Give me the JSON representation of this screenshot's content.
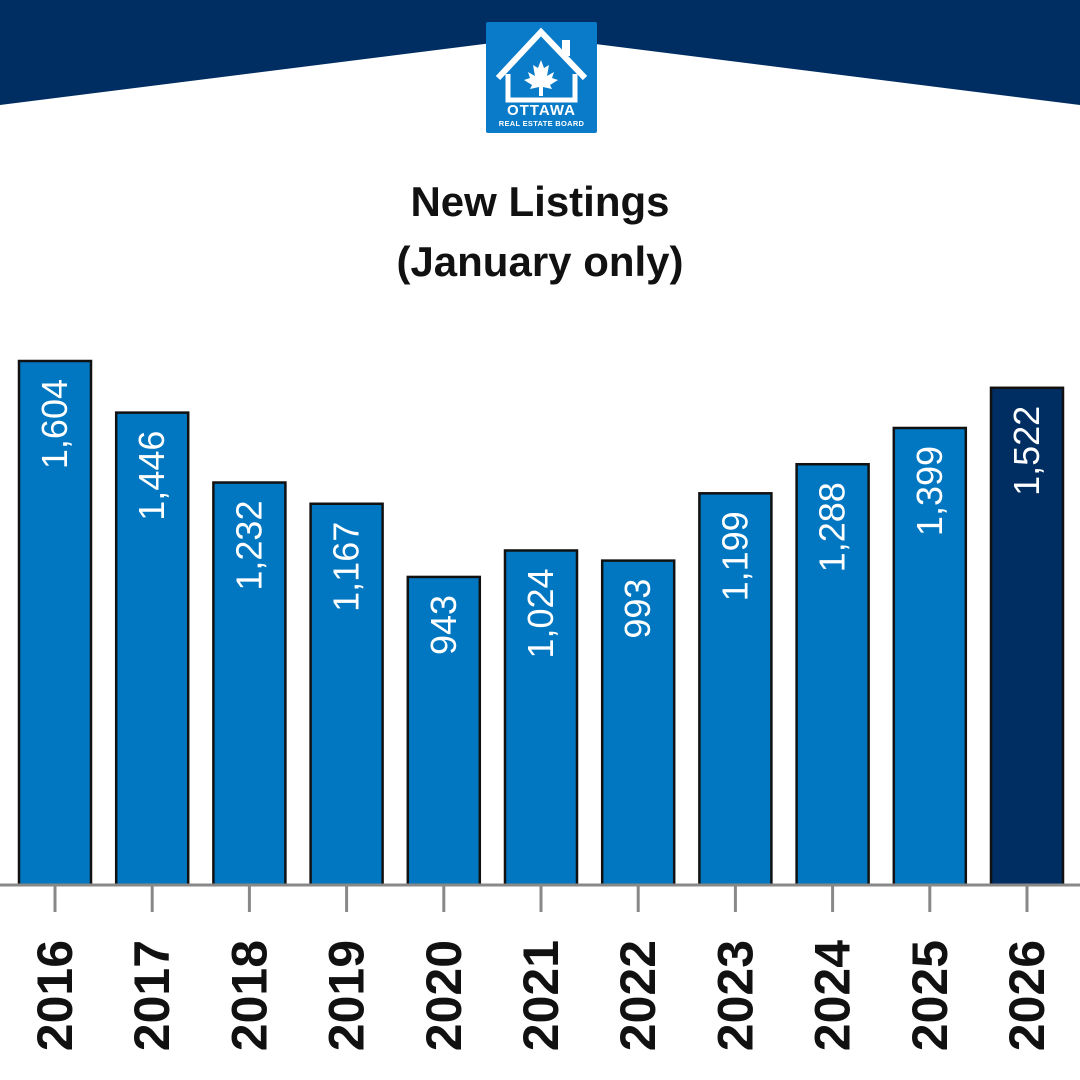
{
  "logo": {
    "line1": "OTTAWA",
    "line2": "REAL ESTATE BOARD"
  },
  "colors": {
    "banner": "#002d62",
    "bar": "#0077c0",
    "bar_highlight": "#002d62",
    "axis": "#888888",
    "bar_label": "#ffffff",
    "tick_label": "#111111"
  },
  "chart_data": {
    "type": "bar",
    "title_line1": "New Listings",
    "title_line2": "(January only)",
    "categories": [
      "2016",
      "2017",
      "2018",
      "2019",
      "2020",
      "2021",
      "2022",
      "2023",
      "2024",
      "2025",
      "2026"
    ],
    "values": [
      1604,
      1446,
      1232,
      1167,
      943,
      1024,
      993,
      1199,
      1288,
      1399,
      1522
    ],
    "value_labels": [
      "1,604",
      "1,446",
      "1,232",
      "1,167",
      "943",
      "1,024",
      "993",
      "1,199",
      "1,288",
      "1,399",
      "1,522"
    ],
    "highlight_category": "2026",
    "xlabel": "",
    "ylabel": "",
    "ylim": [
      0,
      1604
    ],
    "grid": false,
    "legend": "none"
  }
}
